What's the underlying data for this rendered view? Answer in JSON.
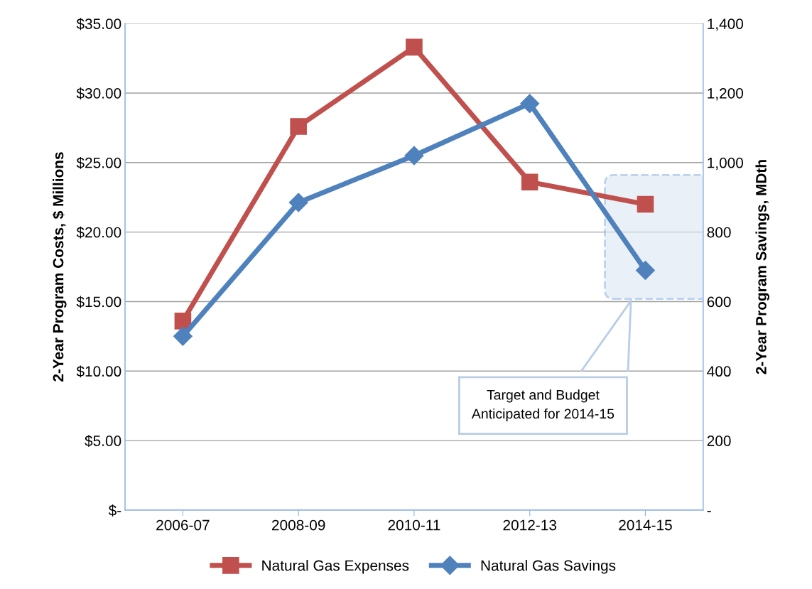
{
  "chart_data": {
    "type": "line",
    "ylabel": "2-Year Program Costs, $ Millions",
    "y2label": "2-Year Program Savings, MDth",
    "categories": [
      "2006-07",
      "2008-09",
      "2010-11",
      "2012-13",
      "2014-15"
    ],
    "series": [
      {
        "name": "Natural Gas Expenses",
        "color": "#c0504d",
        "marker": "square",
        "values": [
          13.6,
          27.6,
          33.3,
          23.6,
          22.0
        ]
      },
      {
        "name": "Natural Gas Savings",
        "color": "#4f81bd",
        "marker": "diamond",
        "axis": "y2",
        "values": [
          500,
          885,
          1020,
          1170,
          690
        ]
      }
    ],
    "ylim": [
      0,
      35
    ],
    "yticks": [
      {
        "value": 0,
        "label": "$-"
      },
      {
        "value": 5,
        "label": "$5.00"
      },
      {
        "value": 10,
        "label": "$10.00"
      },
      {
        "value": 15,
        "label": "$15.00"
      },
      {
        "value": 20,
        "label": "$20.00"
      },
      {
        "value": 25,
        "label": "$25.00"
      },
      {
        "value": 30,
        "label": "$30.00"
      },
      {
        "value": 35,
        "label": "$35.00"
      }
    ],
    "y2lim": [
      0,
      1400
    ],
    "y2ticks": [
      {
        "value": 0,
        "label": "-"
      },
      {
        "value": 200,
        "label": "200"
      },
      {
        "value": 400,
        "label": "400"
      },
      {
        "value": 600,
        "label": "600"
      },
      {
        "value": 800,
        "label": "800"
      },
      {
        "value": 1000,
        "label": "1,000"
      },
      {
        "value": 1200,
        "label": "1,200"
      },
      {
        "value": 1400,
        "label": "1,400"
      }
    ],
    "grid": "y",
    "legend": "bottom",
    "line_style": "solid",
    "annotations": [
      "Target and Budget\nAnticipated for 2014-15"
    ]
  }
}
